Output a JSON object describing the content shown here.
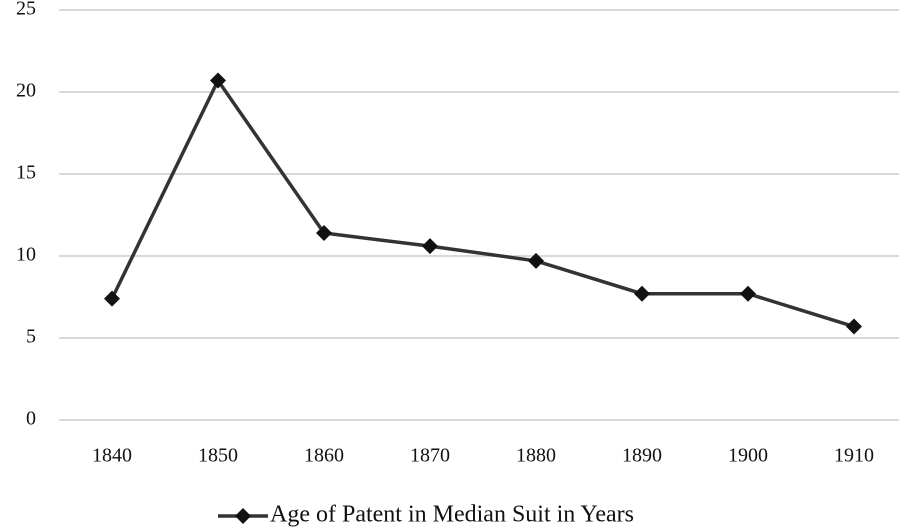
{
  "chart_data": {
    "type": "line",
    "categories": [
      "1840",
      "1850",
      "1860",
      "1870",
      "1880",
      "1890",
      "1900",
      "1910"
    ],
    "series": [
      {
        "name": "Age of Patent in Median Suit in Years",
        "color": "#333333",
        "values": [
          7.4,
          20.7,
          11.4,
          10.6,
          9.7,
          7.7,
          7.7,
          5.7
        ]
      }
    ],
    "ylim": [
      0,
      25
    ],
    "yticks": [
      0,
      5,
      10,
      15,
      20,
      25
    ],
    "grid": true,
    "legend": "bottom"
  }
}
